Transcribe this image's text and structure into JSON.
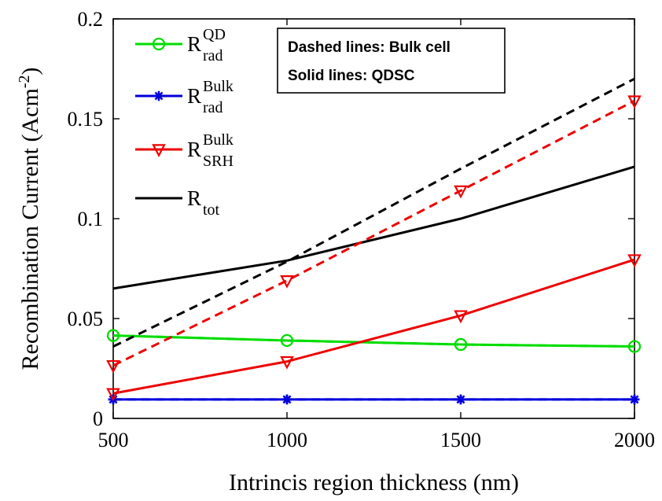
{
  "chart_data": {
    "type": "line",
    "xlabel": "Intrincis region thickness (nm)",
    "ylabel_main": "Recombination Current (Acm",
    "ylabel_sup": "-2",
    "ylabel_close": ")",
    "xlim": [
      500,
      2000
    ],
    "ylim": [
      0,
      0.2
    ],
    "x": [
      500,
      1000,
      1500,
      2000
    ],
    "x_ticks": [
      "500",
      "1000",
      "1500",
      "2000"
    ],
    "y_ticks": [
      {
        "value": 0,
        "label": "0"
      },
      {
        "value": 0.05,
        "label": "0.05"
      },
      {
        "value": 0.1,
        "label": "0.1"
      },
      {
        "value": 0.15,
        "label": "0.15"
      },
      {
        "value": 0.2,
        "label": "0.2"
      }
    ],
    "grid": false,
    "legend_position": "top-left",
    "legend": [
      {
        "id": "rqd",
        "base": "R",
        "sup": "QD",
        "sub": "rad",
        "color": "#00dd00",
        "marker": "circle"
      },
      {
        "id": "rbulk",
        "base": "R",
        "sup": "Bulk",
        "sub": "rad",
        "color": "#0000dd",
        "marker": "star"
      },
      {
        "id": "rsrh",
        "base": "R",
        "sup": "Bulk",
        "sub": "SRH",
        "color": "#ee0000",
        "marker": "triangle-down"
      },
      {
        "id": "rtot",
        "base": "R",
        "sup": "",
        "sub": "tot",
        "color": "#000000",
        "marker": "none"
      }
    ],
    "annotations": [
      "Dashed lines: Bulk cell",
      "Solid lines: QDSC"
    ],
    "series": [
      {
        "legend": "rqd",
        "cell": "Bulk cell",
        "dashed": true,
        "color": "#00dd00",
        "marker": "circle",
        "values": [
          0.0415,
          0.039,
          0.037,
          0.036
        ]
      },
      {
        "legend": "rqd",
        "cell": "QDSC",
        "dashed": false,
        "color": "#00dd00",
        "marker": "circle",
        "values": [
          0.0415,
          0.039,
          0.037,
          0.036
        ]
      },
      {
        "legend": "rbulk",
        "cell": "Bulk cell",
        "dashed": true,
        "color": "#0000dd",
        "marker": "star",
        "values": [
          0.0095,
          0.0095,
          0.0095,
          0.0095
        ]
      },
      {
        "legend": "rbulk",
        "cell": "QDSC",
        "dashed": false,
        "color": "#0000dd",
        "marker": "star",
        "values": [
          0.0095,
          0.0095,
          0.0095,
          0.0095
        ]
      },
      {
        "legend": "rsrh",
        "cell": "Bulk cell",
        "dashed": true,
        "color": "#ee0000",
        "marker": "triangle-down",
        "values": [
          0.0265,
          0.069,
          0.114,
          0.159
        ]
      },
      {
        "legend": "rsrh",
        "cell": "QDSC",
        "dashed": false,
        "color": "#ee0000",
        "marker": "triangle-down",
        "values": [
          0.0125,
          0.0285,
          0.0515,
          0.0795
        ]
      },
      {
        "legend": "rtot",
        "cell": "Bulk cell",
        "dashed": true,
        "color": "#000000",
        "marker": "none",
        "values": [
          0.036,
          0.0785,
          0.125,
          0.17
        ]
      },
      {
        "legend": "rtot",
        "cell": "QDSC",
        "dashed": false,
        "color": "#000000",
        "marker": "none",
        "values": [
          0.065,
          0.079,
          0.1,
          0.126
        ]
      }
    ]
  }
}
